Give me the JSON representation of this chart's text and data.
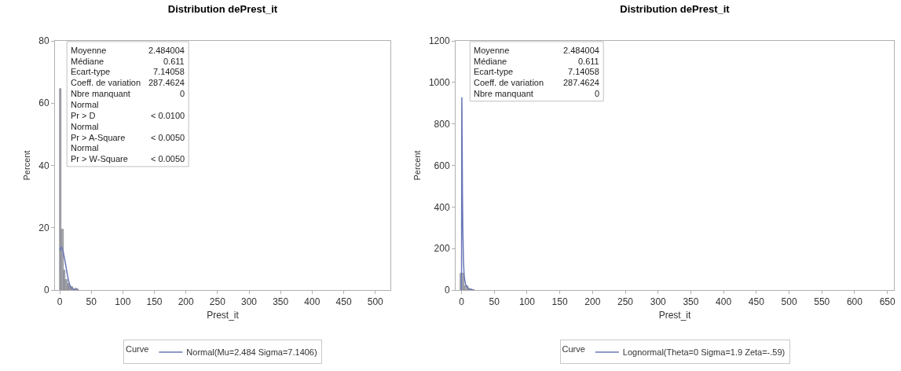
{
  "chart_data": [
    {
      "type": "histogram",
      "title": "Distribution dePrest_it",
      "xlabel": "Prest_it",
      "ylabel": "Percent",
      "legend_title": "Curve",
      "legend": "bottom",
      "grid": false,
      "color": "#a8a8b0",
      "bins": [
        0,
        3,
        6,
        9,
        12,
        15,
        18,
        21,
        24,
        27,
        30
      ],
      "values": [
        64.6,
        19.4,
        6.2,
        3.2,
        2.0,
        1.3,
        0.9,
        null,
        0.4,
        0.3
      ],
      "series": [
        {
          "type": "line",
          "name": "Normal(Mu=2.484 Sigma=7.1406)",
          "color": "#6a78b8",
          "x": [
            0,
            1,
            2.5,
            4,
            6,
            8,
            10,
            12,
            14,
            16,
            18,
            20,
            22,
            25,
            30
          ],
          "values": [
            12.8,
            13.3,
            13.8,
            13.3,
            11.8,
            9.8,
            7.4,
            5.0,
            3.0,
            1.6,
            0.8,
            0.4,
            0.2,
            0,
            0
          ]
        }
      ],
      "xlim": [
        -7.5,
        524
      ],
      "xticks": [
        0,
        50,
        100,
        150,
        200,
        250,
        300,
        350,
        400,
        450,
        500
      ],
      "ylim": [
        0,
        80
      ],
      "yticks": [
        0,
        20,
        40,
        60,
        80
      ],
      "annotations": [
        "Moyenne 2.484004",
        "Médiane 0.611",
        "Ecart-type 7.14058",
        "Coeff. de variation 287.4624",
        "Nbre manquant 0",
        "Normal",
        "Pr > D < 0.0100",
        "Normal",
        "Pr > A-Square < 0.0050",
        "Normal",
        "Pr > W-Square < 0.0050"
      ]
    },
    {
      "type": "histogram",
      "title": "Distribution dePrest_it",
      "xlabel": "Prest_it",
      "ylabel": "Percent",
      "legend_title": "Curve",
      "legend": "bottom",
      "grid": false,
      "color": "#a8a8b0",
      "bins": [
        -2,
        4,
        10,
        16
      ],
      "values": [
        80,
        18,
        3
      ],
      "series": [
        {
          "type": "line",
          "name": "Lognormal(Theta=0 Sigma=1.9 Zeta=-.59)",
          "color": "#6a78b8",
          "x": [
            0,
            0.15,
            0.3,
            0.45,
            0.55,
            0.7,
            1,
            1.5,
            2,
            3,
            4,
            6,
            8,
            12,
            16,
            20
          ],
          "values": [
            0,
            300,
            700,
            900,
            928,
            880,
            700,
            450,
            300,
            140,
            70,
            30,
            15,
            5,
            2,
            0
          ]
        }
      ],
      "xlim": [
        -9,
        660
      ],
      "xticks": [
        0,
        50,
        100,
        150,
        200,
        250,
        300,
        350,
        400,
        450,
        500,
        550,
        600,
        650
      ],
      "ylim": [
        0,
        1200
      ],
      "yticks": [
        0,
        200,
        400,
        600,
        800,
        1000,
        1200
      ],
      "annotations": [
        "Moyenne 2.484004",
        "Médiane 0.611",
        "Ecart-type 7.14058",
        "Coeff. de variation 287.4624",
        "Nbre manquant 0"
      ]
    }
  ]
}
